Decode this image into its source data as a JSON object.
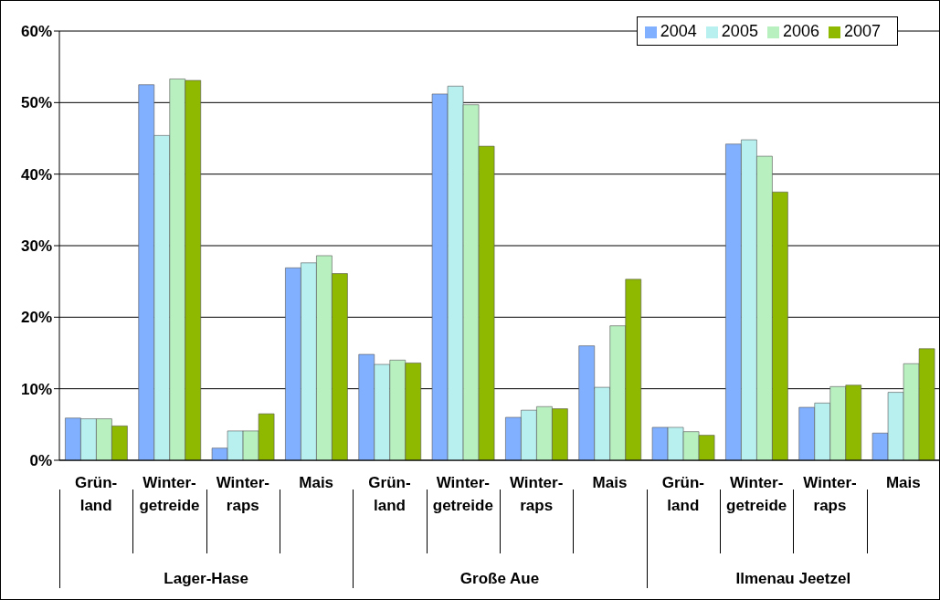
{
  "chart_data": {
    "type": "bar",
    "categories": [
      "Grün-\nland",
      "Winter-\ngetreide",
      "Winter-\nraps",
      "Mais",
      "Grün-\nland",
      "Winter-\ngetreide",
      "Winter-\nraps",
      "Mais",
      "Grün-\nland",
      "Winter-\ngetreide",
      "Winter-\nraps",
      "Mais"
    ],
    "series": [
      {
        "name": "2004",
        "color": "#80b0ff",
        "values": [
          5.9,
          52.5,
          1.7,
          26.9,
          14.8,
          51.2,
          6.0,
          16.0,
          4.6,
          44.2,
          7.4,
          3.8
        ]
      },
      {
        "name": "2005",
        "color": "#b8f0f0",
        "values": [
          5.8,
          45.4,
          4.1,
          27.6,
          13.4,
          52.3,
          7.0,
          10.2,
          4.6,
          44.8,
          8.0,
          9.5
        ]
      },
      {
        "name": "2006",
        "color": "#b8f0c0",
        "values": [
          5.8,
          53.3,
          4.1,
          28.6,
          14.0,
          49.7,
          7.5,
          18.8,
          4.0,
          42.5,
          10.3,
          13.5
        ]
      },
      {
        "name": "2007",
        "color": "#8fb800",
        "values": [
          4.8,
          53.1,
          6.5,
          26.1,
          13.6,
          43.9,
          7.2,
          25.3,
          3.5,
          37.5,
          10.5,
          15.6
        ]
      }
    ],
    "annotations": [
      "Lager-Hase",
      "Große Aue",
      "Ilmenau Jeetzel"
    ],
    "ylim": [
      0,
      60
    ],
    "yticks": [
      {
        "value": 0,
        "label": "0%"
      },
      {
        "value": 10,
        "label": "10%"
      },
      {
        "value": 20,
        "label": "20%"
      },
      {
        "value": 30,
        "label": "30%"
      },
      {
        "value": 40,
        "label": "40%"
      },
      {
        "value": 50,
        "label": "50%"
      },
      {
        "value": 60,
        "label": "60%"
      }
    ],
    "grid": "y",
    "legend": "top right"
  }
}
